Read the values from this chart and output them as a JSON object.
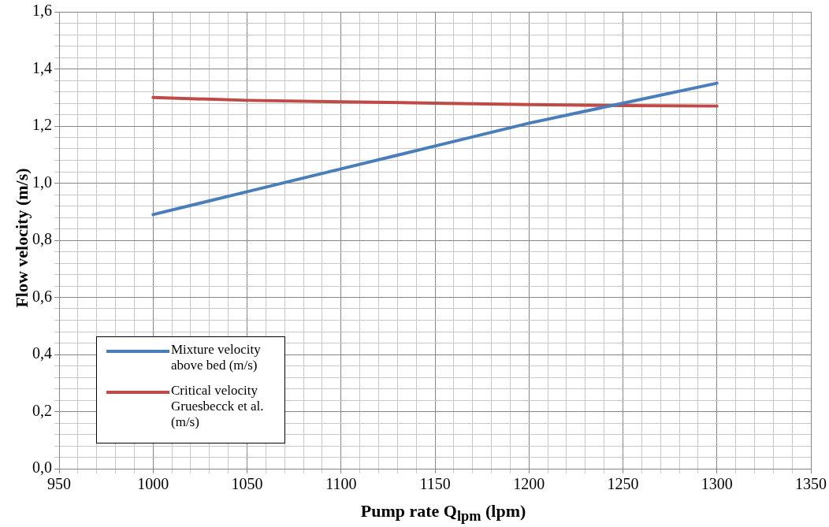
{
  "chart_data": {
    "type": "line",
    "xlabel": "Pump rate Q$_{lpm}$ (lpm)",
    "ylabel": "Flow velocity (m/s)",
    "x": [
      1000,
      1050,
      1100,
      1150,
      1200,
      1250,
      1300
    ],
    "series": [
      {
        "name": "Mixture velocity above bed (m/s)",
        "color": "#4a7ebb",
        "values": [
          0.89,
          0.97,
          1.05,
          1.13,
          1.21,
          1.28,
          1.35
        ]
      },
      {
        "name": "Critical velocity Gruesbecck et al. (m/s)",
        "color": "#be4b48",
        "values": [
          1.3,
          1.29,
          1.285,
          1.28,
          1.275,
          1.272,
          1.27
        ]
      }
    ],
    "xlim": [
      950,
      1350
    ],
    "xticks": [
      950,
      {
        "value": 960,
        "label": null
      },
      {
        "value": 970,
        "label": null
      },
      {
        "value": 980,
        "label": null
      },
      {
        "value": 990,
        "label": null
      },
      1000,
      {
        "value": 1010,
        "label": null
      },
      {
        "value": 1020,
        "label": null
      },
      {
        "value": 1030,
        "label": null
      },
      {
        "value": 1040,
        "label": null
      },
      1050,
      {
        "value": 1060,
        "label": null
      },
      {
        "value": 1070,
        "label": null
      },
      {
        "value": 1080,
        "label": null
      },
      {
        "value": 1090,
        "label": null
      },
      1100,
      {
        "value": 1110,
        "label": null
      },
      {
        "value": 1120,
        "label": null
      },
      {
        "value": 1130,
        "label": null
      },
      {
        "value": 1140,
        "label": null
      },
      1150,
      {
        "value": 1160,
        "label": null
      },
      {
        "value": 1170,
        "label": null
      },
      {
        "value": 1180,
        "label": null
      },
      {
        "value": 1190,
        "label": null
      },
      1200,
      {
        "value": 1210,
        "label": null
      },
      {
        "value": 1220,
        "label": null
      },
      {
        "value": 1230,
        "label": null
      },
      {
        "value": 1240,
        "label": null
      },
      1250,
      {
        "value": 1260,
        "label": null
      },
      {
        "value": 1270,
        "label": null
      },
      {
        "value": 1280,
        "label": null
      },
      {
        "value": 1290,
        "label": null
      },
      1300,
      {
        "value": 1310,
        "label": null
      },
      {
        "value": 1320,
        "label": null
      },
      {
        "value": 1330,
        "label": null
      },
      {
        "value": 1340,
        "label": null
      },
      1350
    ],
    "ylim": [
      0,
      1.6
    ],
    "yticks": [
      {
        "value": 0,
        "label": "0,0"
      },
      {
        "value": 0.04,
        "label": null
      },
      {
        "value": 0.08,
        "label": null
      },
      {
        "value": 0.12,
        "label": null
      },
      {
        "value": 0.16,
        "label": null
      },
      {
        "value": 0.2,
        "label": "0,2"
      },
      {
        "value": 0.24,
        "label": null
      },
      {
        "value": 0.28,
        "label": null
      },
      {
        "value": 0.32,
        "label": null
      },
      {
        "value": 0.36,
        "label": null
      },
      {
        "value": 0.4,
        "label": "0,4"
      },
      {
        "value": 0.44,
        "label": null
      },
      {
        "value": 0.48,
        "label": null
      },
      {
        "value": 0.52,
        "label": null
      },
      {
        "value": 0.56,
        "label": null
      },
      {
        "value": 0.6,
        "label": "0,6"
      },
      {
        "value": 0.64,
        "label": null
      },
      {
        "value": 0.68,
        "label": null
      },
      {
        "value": 0.72,
        "label": null
      },
      {
        "value": 0.76,
        "label": null
      },
      {
        "value": 0.8,
        "label": "0,8"
      },
      {
        "value": 0.84,
        "label": null
      },
      {
        "value": 0.88,
        "label": null
      },
      {
        "value": 0.92,
        "label": null
      },
      {
        "value": 0.96,
        "label": null
      },
      {
        "value": 1,
        "label": "1,0"
      },
      {
        "value": 1.04,
        "label": null
      },
      {
        "value": 1.08,
        "label": null
      },
      {
        "value": 1.12,
        "label": null
      },
      {
        "value": 1.16,
        "label": null
      },
      {
        "value": 1.2,
        "label": "1,2"
      },
      {
        "value": 1.24,
        "label": null
      },
      {
        "value": 1.28,
        "label": null
      },
      {
        "value": 1.32,
        "label": null
      },
      {
        "value": 1.36,
        "label": null
      },
      {
        "value": 1.4,
        "label": "1,4"
      },
      {
        "value": 1.44,
        "label": null
      },
      {
        "value": 1.48,
        "label": null
      },
      {
        "value": 1.52,
        "label": null
      },
      {
        "value": 1.56,
        "label": null
      },
      {
        "value": 1.6,
        "label": "1,6"
      }
    ],
    "grid": true,
    "legend": "bottom left",
    "marker": "none",
    "line_style": "solid"
  }
}
